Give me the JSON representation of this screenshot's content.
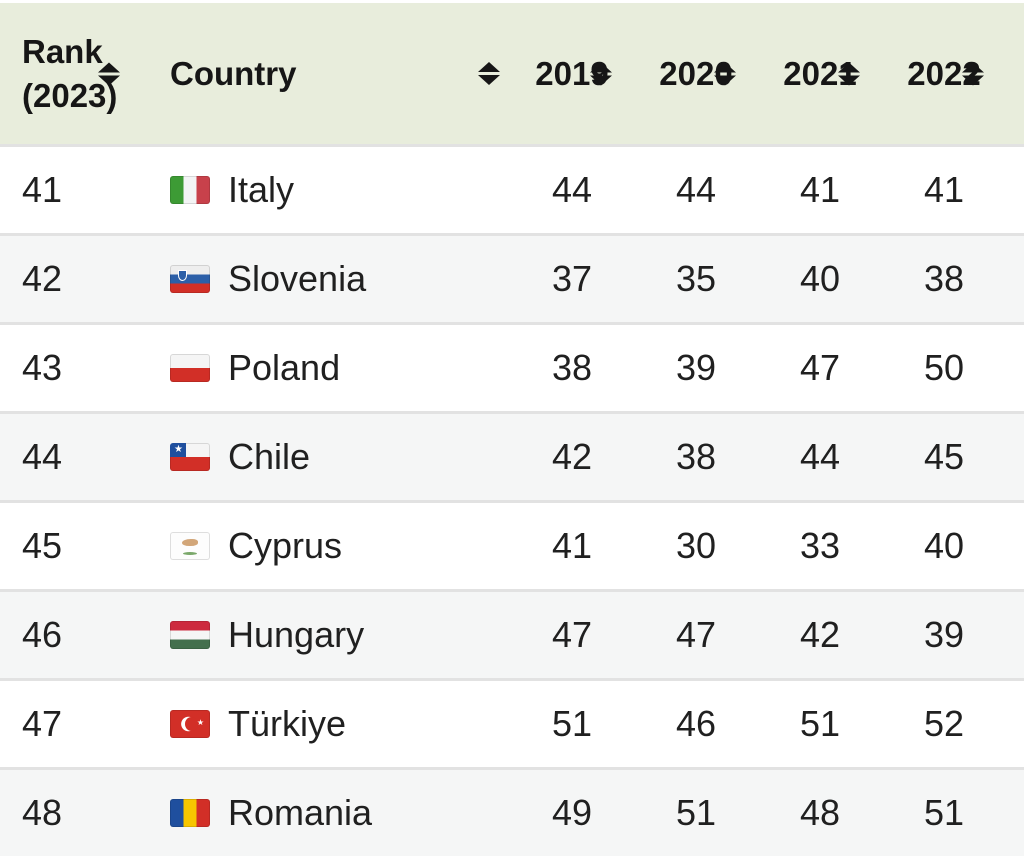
{
  "colors": {
    "header_bg": "#e8eddc",
    "row_bg": "#ffffff",
    "row_alt_bg": "#f5f6f6",
    "divider": "#e2e2e2",
    "text": "#202020",
    "header_text": "#161616"
  },
  "icons": {
    "sort": "sort-updown-triangles"
  },
  "table": {
    "header": {
      "rank_line1": "Rank",
      "rank_line2": "(2023)",
      "country": "Country",
      "years": [
        "2019",
        "2020",
        "2021",
        "2022"
      ]
    },
    "rows": [
      {
        "rank": "41",
        "country": "Italy",
        "flag": "italy",
        "values": [
          "44",
          "44",
          "41",
          "41"
        ]
      },
      {
        "rank": "42",
        "country": "Slovenia",
        "flag": "slovenia",
        "values": [
          "37",
          "35",
          "40",
          "38"
        ]
      },
      {
        "rank": "43",
        "country": "Poland",
        "flag": "poland",
        "values": [
          "38",
          "39",
          "47",
          "50"
        ]
      },
      {
        "rank": "44",
        "country": "Chile",
        "flag": "chile",
        "values": [
          "42",
          "38",
          "44",
          "45"
        ]
      },
      {
        "rank": "45",
        "country": "Cyprus",
        "flag": "cyprus",
        "values": [
          "41",
          "30",
          "33",
          "40"
        ]
      },
      {
        "rank": "46",
        "country": "Hungary",
        "flag": "hungary",
        "values": [
          "47",
          "47",
          "42",
          "39"
        ]
      },
      {
        "rank": "47",
        "country": "Türkiye",
        "flag": "turkiye",
        "values": [
          "51",
          "46",
          "51",
          "52"
        ]
      },
      {
        "rank": "48",
        "country": "Romania",
        "flag": "romania",
        "values": [
          "49",
          "51",
          "48",
          "51"
        ]
      }
    ]
  }
}
